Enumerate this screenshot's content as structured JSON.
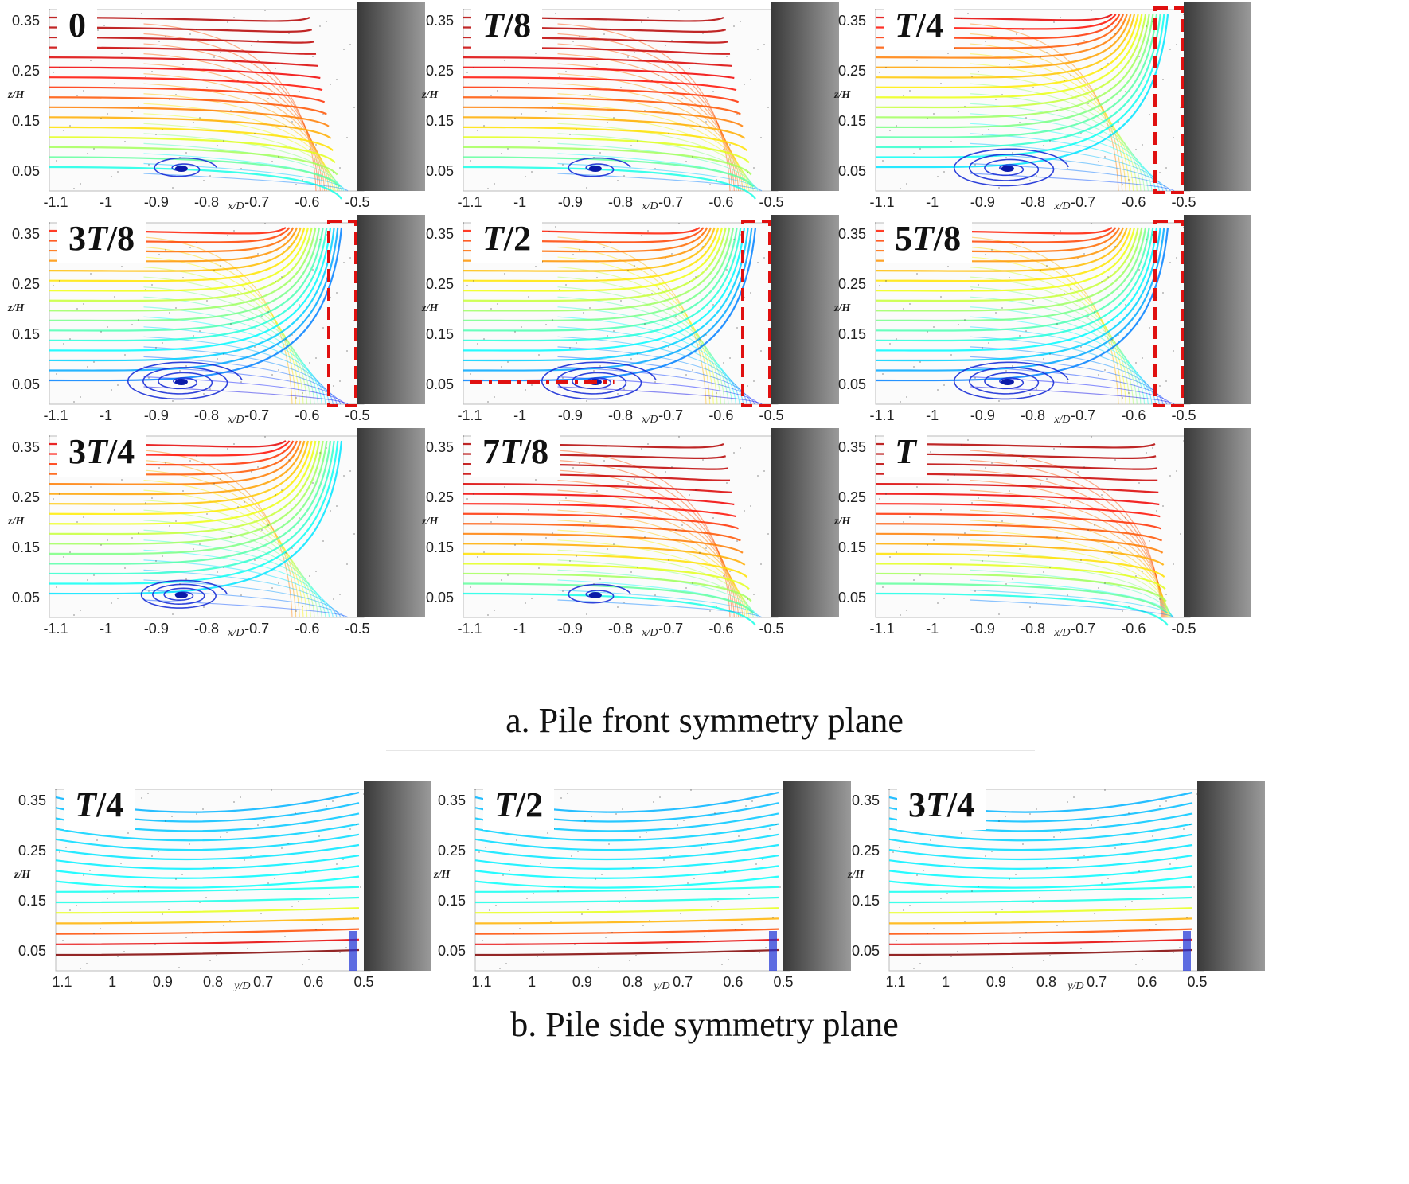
{
  "figure": {
    "caption_a": "a. Pile front symmetry plane",
    "caption_b": "b. Pile side symmetry plane"
  },
  "axes": {
    "y_label": "z/H",
    "y_ticks": [
      "0.35",
      "0.25",
      "0.15",
      "0.05"
    ],
    "front_x_label": "x/D",
    "front_x_ticks": [
      "-1.1",
      "-1",
      "-0.9",
      "-0.8",
      "-0.7",
      "-0.6",
      "-0.5"
    ],
    "side_x_label": "y/D",
    "side_x_ticks": [
      "1.1",
      "1",
      "0.9",
      "0.8",
      "0.7",
      "0.6",
      "0.5"
    ]
  },
  "front_panels": [
    {
      "label": "0",
      "vortex": "weak",
      "box": false,
      "dash": false,
      "tone": "red"
    },
    {
      "label": "T/8",
      "vortex": "weak",
      "box": false,
      "dash": false,
      "tone": "red"
    },
    {
      "label": "T/4",
      "vortex": "strong",
      "box": true,
      "dash": false,
      "tone": "mix"
    },
    {
      "label": "3T/8",
      "vortex": "strong",
      "box": true,
      "dash": false,
      "tone": "cool"
    },
    {
      "label": "T/2",
      "vortex": "strong",
      "box": true,
      "dash": true,
      "tone": "cool"
    },
    {
      "label": "5T/8",
      "vortex": "strong",
      "box": true,
      "dash": false,
      "tone": "cool"
    },
    {
      "label": "3T/4",
      "vortex": "medium",
      "box": false,
      "dash": false,
      "tone": "mix"
    },
    {
      "label": "7T/8",
      "vortex": "weak",
      "box": false,
      "dash": false,
      "tone": "red"
    },
    {
      "label": "T",
      "vortex": "none",
      "box": false,
      "dash": false,
      "tone": "red"
    }
  ],
  "side_panels": [
    {
      "label": "T/4"
    },
    {
      "label": "T/2"
    },
    {
      "label": "3T/4"
    }
  ]
}
